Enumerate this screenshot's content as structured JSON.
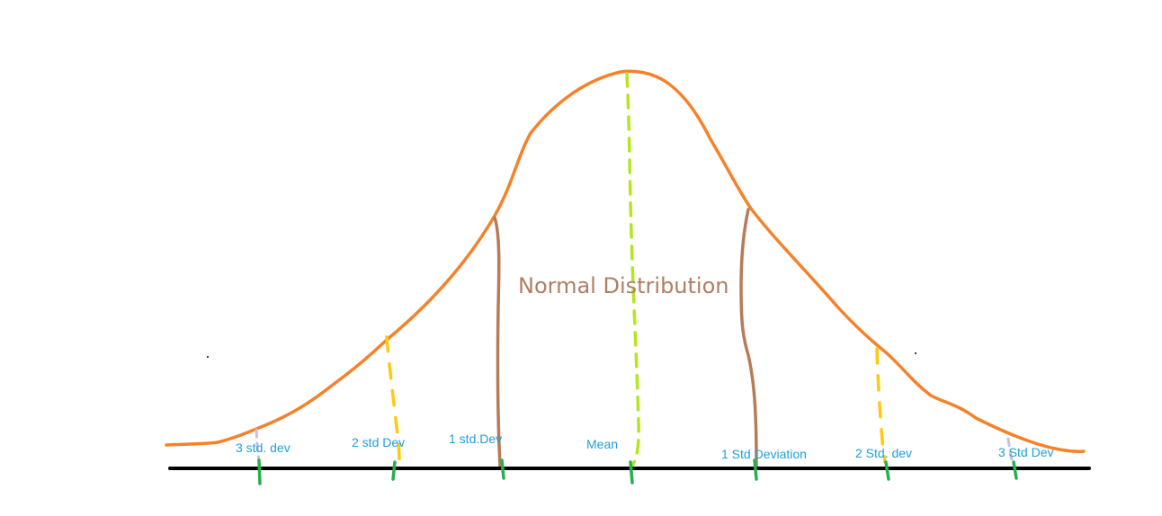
{
  "diagram": {
    "title": "Normal Distribution",
    "labels": {
      "neg3": "3 std. dev",
      "neg2": "2 std Dev",
      "neg1": "1 std.Dev",
      "mean": "Mean",
      "pos1": "1 Std Deviation",
      "pos2": "2 Std. dev",
      "pos3": "3 Std Dev"
    },
    "colors": {
      "curve": "#f5822a",
      "axis": "#000000",
      "tick": "#22b14c",
      "mean_line": "#b5e61d",
      "one_std_line": "#b97a57",
      "two_std_line": "#ffc90e",
      "three_std_line": "#c8bfe7",
      "label": "#1fa0db",
      "title": "#b07e60"
    }
  }
}
